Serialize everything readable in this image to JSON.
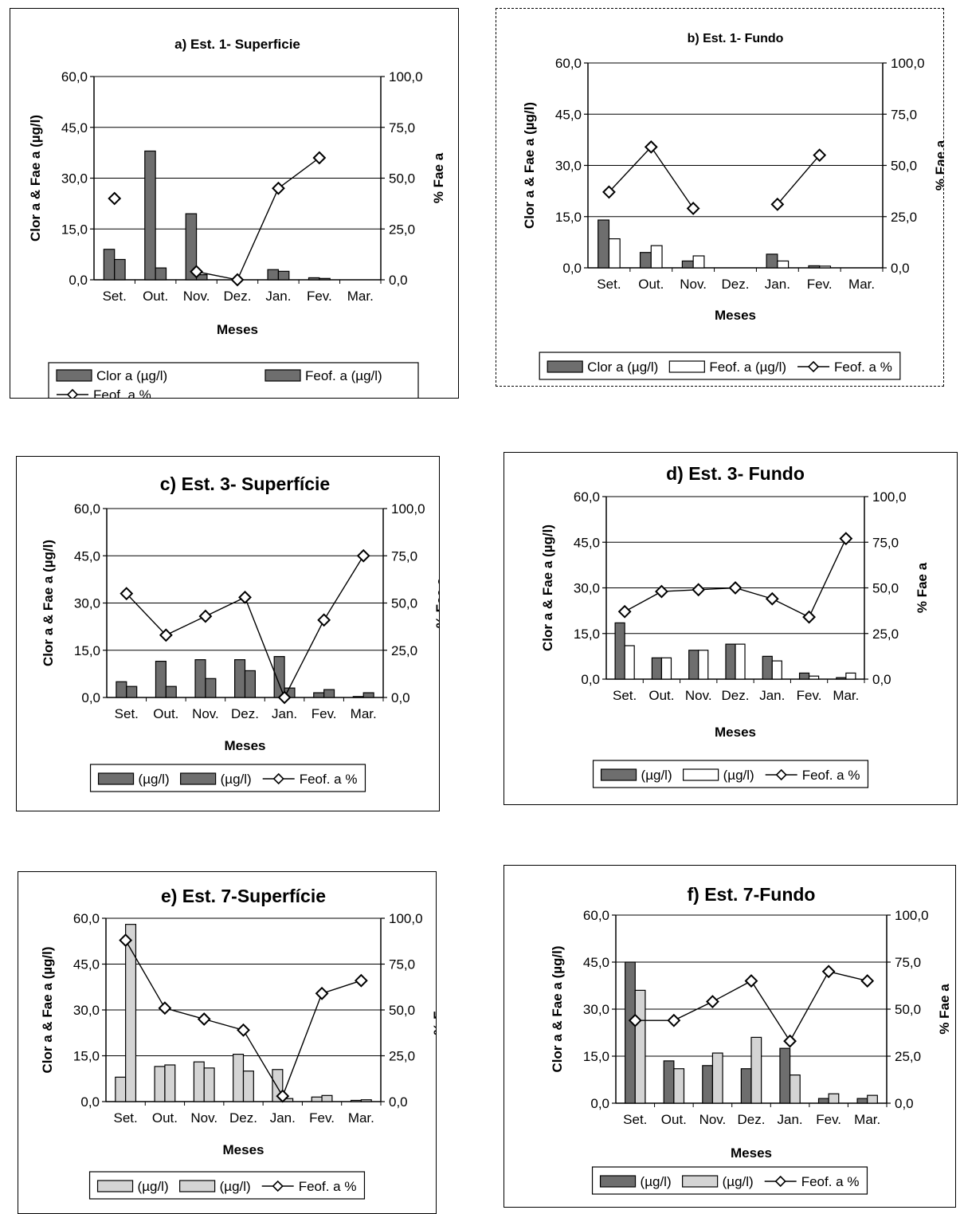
{
  "chart_data": [
    {
      "type": "bar",
      "title": "a) Est. 1- Superficie",
      "categories": [
        "Set.",
        "Out.",
        "Nov.",
        "Dez.",
        "Jan.",
        "Fev.",
        "Mar."
      ],
      "xlabel": "Meses",
      "ylabel": "Clor a & Fae a (µg/l)",
      "y2label": "% Fae a",
      "ylim": [
        0,
        60
      ],
      "y2lim": [
        0,
        100
      ],
      "yticks": [
        "0,0",
        "15,0",
        "30,0",
        "45,0",
        "60,0"
      ],
      "y2ticks": [
        "0,0",
        "25,0",
        "50,0",
        "75,0",
        "100,0"
      ],
      "grid": true,
      "series": [
        {
          "name": "Clor a  (µg/l)",
          "kind": "bar",
          "fill": "dark",
          "values": [
            9,
            38,
            19.5,
            0,
            3,
            0.6,
            0
          ]
        },
        {
          "name": "Feof. a (µg/l)",
          "kind": "bar",
          "fill": "dark",
          "values": [
            6,
            3.5,
            1.5,
            0,
            2.5,
            0.4,
            0
          ]
        },
        {
          "name": "Feof. a %",
          "kind": "line",
          "axis": "right",
          "values": [
            40,
            null,
            4,
            0,
            45,
            60,
            null
          ]
        }
      ],
      "legend": {
        "items": [
          "Clor a  (µg/l)",
          "Feof. a (µg/l)",
          "Feof. a %"
        ]
      }
    },
    {
      "type": "bar",
      "title": "b) Est. 1- Fundo",
      "categories": [
        "Set.",
        "Out.",
        "Nov.",
        "Dez.",
        "Jan.",
        "Fev.",
        "Mar."
      ],
      "xlabel": "Meses",
      "ylabel": "Clor a & Fae a (µg/l)",
      "y2label": "% Fae a",
      "ylim": [
        0,
        60
      ],
      "y2lim": [
        0,
        100
      ],
      "yticks": [
        "0,0",
        "15,0",
        "30,0",
        "45,0",
        "60,0"
      ],
      "y2ticks": [
        "0,0",
        "25,0",
        "50,0",
        "75,0",
        "100,0"
      ],
      "grid": true,
      "series": [
        {
          "name": "Clor a  (µg/l)",
          "kind": "bar",
          "fill": "dark",
          "values": [
            14,
            4.5,
            2,
            0,
            4,
            0.6,
            0
          ]
        },
        {
          "name": "Feof. a (µg/l)",
          "kind": "bar",
          "fill": "white",
          "values": [
            8.5,
            6.5,
            3.5,
            0,
            2,
            0.5,
            0
          ]
        },
        {
          "name": "Feof. a %",
          "kind": "line",
          "axis": "right",
          "values": [
            37,
            59,
            29,
            null,
            31,
            55,
            null
          ]
        }
      ],
      "legend": {
        "items": [
          "Clor a  (µg/l)",
          "Feof. a (µg/l)",
          "Feof. a %"
        ]
      }
    },
    {
      "type": "bar",
      "title": "c) Est. 3- Superfície",
      "categories": [
        "Set.",
        "Out.",
        "Nov.",
        "Dez.",
        "Jan.",
        "Fev.",
        "Mar."
      ],
      "xlabel": "Meses",
      "ylabel": "Clor a & Fae a (µg/l)",
      "y2label": "% Fae a",
      "ylim": [
        0,
        60
      ],
      "y2lim": [
        0,
        100
      ],
      "yticks": [
        "0,0",
        "15,0",
        "30,0",
        "45,0",
        "60,0"
      ],
      "y2ticks": [
        "0,0",
        "25,0",
        "50,0",
        "75,0",
        "100,0"
      ],
      "grid": true,
      "series": [
        {
          "name": "(µg/l)",
          "kind": "bar",
          "fill": "dark",
          "values": [
            5,
            11.5,
            12,
            12,
            13,
            1.5,
            0.3
          ]
        },
        {
          "name": "(µg/l)",
          "kind": "bar",
          "fill": "dark",
          "values": [
            3.5,
            3.5,
            6,
            8.5,
            3,
            2.5,
            1.5
          ]
        },
        {
          "name": "Feof. a %",
          "kind": "line",
          "axis": "right",
          "values": [
            55,
            33,
            43,
            53,
            0,
            41,
            75
          ]
        }
      ],
      "legend": {
        "items": [
          "(µg/l)",
          "(µg/l)",
          "Feof. a %"
        ]
      }
    },
    {
      "type": "bar",
      "title": "d) Est. 3- Fundo",
      "categories": [
        "Set.",
        "Out.",
        "Nov.",
        "Dez.",
        "Jan.",
        "Fev.",
        "Mar."
      ],
      "xlabel": "Meses",
      "ylabel": "Clor a & Fae a  (µg/l)",
      "y2label": "% Fae a",
      "ylim": [
        0,
        60
      ],
      "y2lim": [
        0,
        100
      ],
      "yticks": [
        "0,0",
        "15,0",
        "30,0",
        "45,0",
        "60,0"
      ],
      "y2ticks": [
        "0,0",
        "25,0",
        "50,0",
        "75,0",
        "100,0"
      ],
      "grid": true,
      "series": [
        {
          "name": "(µg/l)",
          "kind": "bar",
          "fill": "dark",
          "values": [
            18.5,
            7,
            9.5,
            11.5,
            7.5,
            2,
            0.5
          ]
        },
        {
          "name": "(µg/l)",
          "kind": "bar",
          "fill": "white",
          "values": [
            11,
            7,
            9.5,
            11.5,
            6,
            1,
            2
          ]
        },
        {
          "name": "Feof. a %",
          "kind": "line",
          "axis": "right",
          "values": [
            37,
            48,
            49,
            50,
            44,
            34,
            77
          ]
        }
      ],
      "legend": {
        "items": [
          "(µg/l)",
          "(µg/l)",
          "Feof. a %"
        ]
      }
    },
    {
      "type": "bar",
      "title": "e) Est. 7-Superfície",
      "categories": [
        "Set.",
        "Out.",
        "Nov.",
        "Dez.",
        "Jan.",
        "Fev.",
        "Mar."
      ],
      "xlabel": "Meses",
      "ylabel": "Clor a & Fae a (µg/l)",
      "y2label": "% Fae a",
      "ylim": [
        0,
        60
      ],
      "y2lim": [
        0,
        100
      ],
      "yticks": [
        "0,0",
        "15,0",
        "30,0",
        "45,0",
        "60,0"
      ],
      "y2ticks": [
        "0,0",
        "25,0",
        "50,0",
        "75,0",
        "100,0"
      ],
      "grid": true,
      "series": [
        {
          "name": "(µg/l)",
          "kind": "bar",
          "fill": "light",
          "values": [
            8,
            11.5,
            13,
            15.5,
            10.5,
            1.5,
            0.4
          ]
        },
        {
          "name": "(µg/l)",
          "kind": "bar",
          "fill": "light",
          "values": [
            58,
            12,
            11,
            10,
            1,
            2,
            0.6
          ]
        },
        {
          "name": "Feof. a %",
          "kind": "line",
          "axis": "right",
          "values": [
            88,
            51,
            45,
            39,
            3,
            59,
            66
          ]
        }
      ],
      "legend": {
        "items": [
          "(µg/l)",
          "(µg/l)",
          "Feof. a %"
        ]
      }
    },
    {
      "type": "bar",
      "title": "f) Est. 7-Fundo",
      "categories": [
        "Set.",
        "Out.",
        "Nov.",
        "Dez.",
        "Jan.",
        "Fev.",
        "Mar."
      ],
      "xlabel": "Meses",
      "ylabel": "Clor a & Fae a (µg/l)",
      "y2label": "% Fae a",
      "ylim": [
        0,
        60
      ],
      "y2lim": [
        0,
        100
      ],
      "yticks": [
        "0,0",
        "15,0",
        "30,0",
        "45,0",
        "60,0"
      ],
      "y2ticks": [
        "0,0",
        "25,0",
        "50,0",
        "75,0",
        "100,0"
      ],
      "grid": true,
      "series": [
        {
          "name": "(µg/l)",
          "kind": "bar",
          "fill": "dark",
          "values": [
            45,
            13.5,
            12,
            11,
            17.5,
            1.5,
            1.5
          ]
        },
        {
          "name": "(µg/l)",
          "kind": "bar",
          "fill": "light",
          "values": [
            36,
            11,
            16,
            21,
            9,
            3,
            2.5
          ]
        },
        {
          "name": "Feof. a %",
          "kind": "line",
          "axis": "right",
          "values": [
            44,
            44,
            54,
            65,
            33,
            70,
            65
          ]
        }
      ],
      "legend": {
        "items": [
          "(µg/l)",
          "(µg/l)",
          "Feof. a %"
        ]
      }
    }
  ],
  "colors": {
    "dark_bar": "#6e6e6e",
    "light_bar": "#d4d4d4",
    "white_bar": "#ffffff",
    "line": "#000000",
    "grid": "#000000"
  }
}
